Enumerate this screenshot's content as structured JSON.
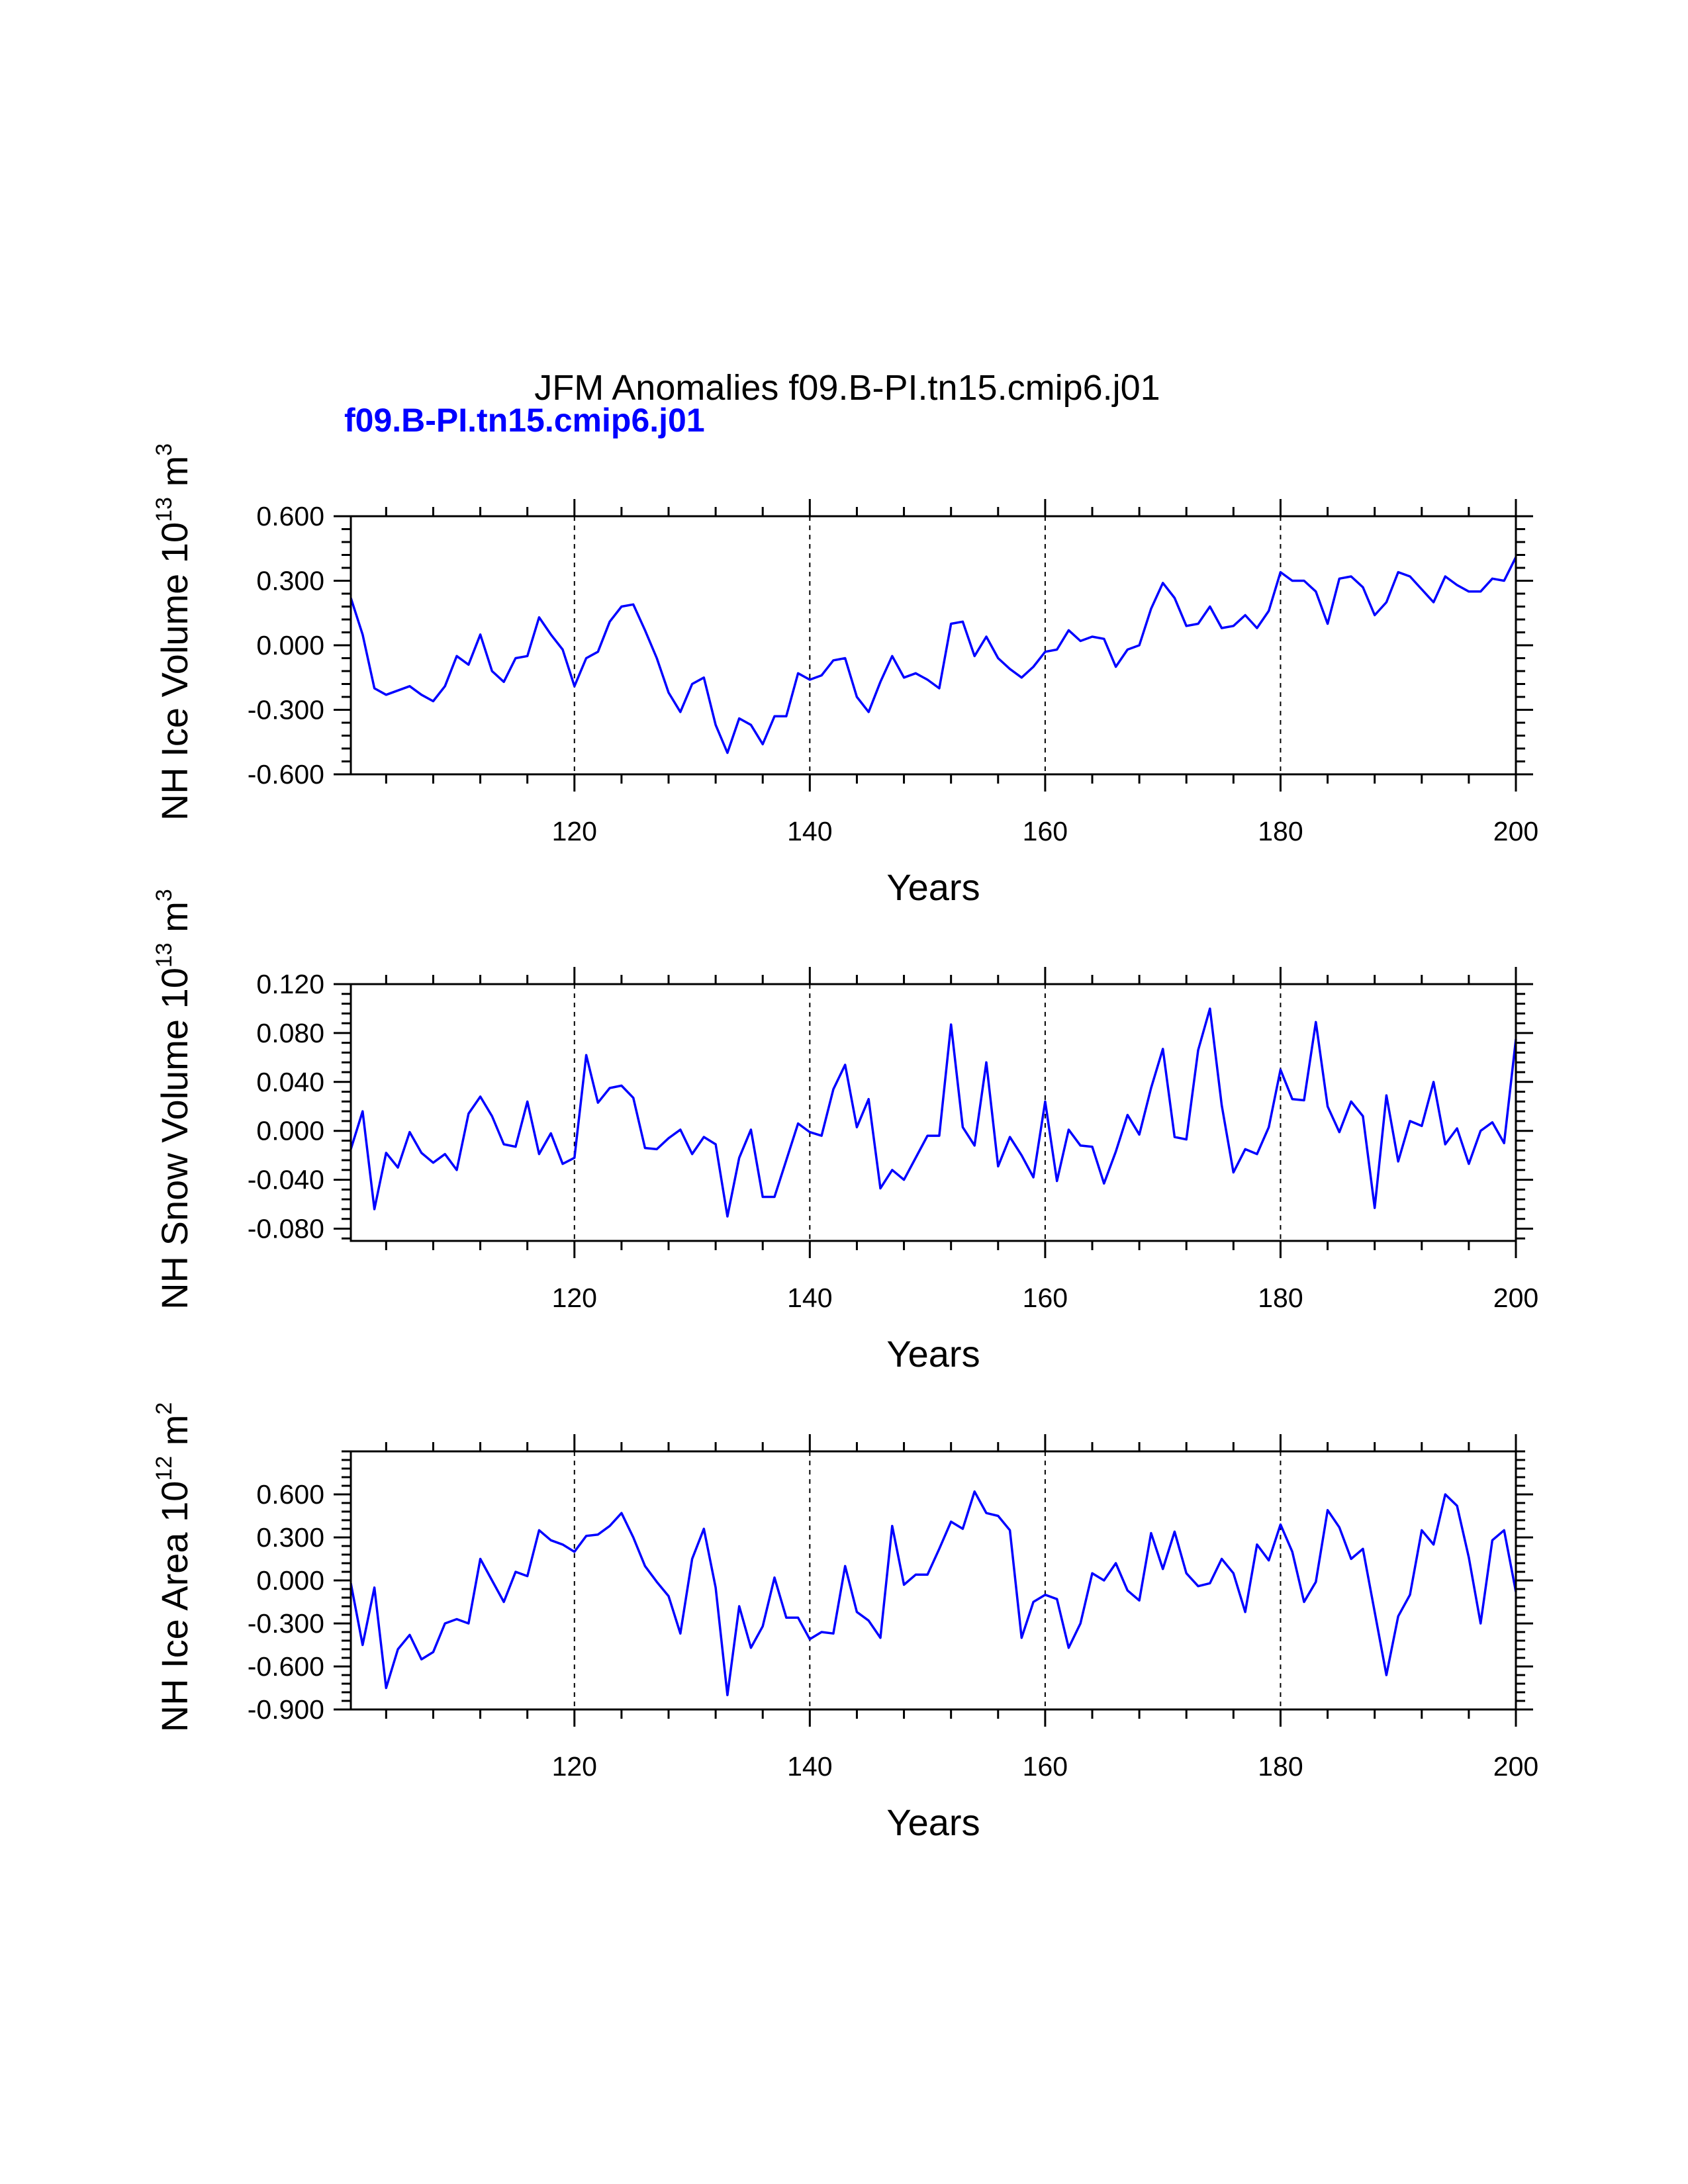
{
  "title": "JFM Anomalies f09.B-PI.tn15.cmip6.j01",
  "subtitle": "f09.B-PI.tn15.cmip6.j01",
  "colors": {
    "series": "#0000ff",
    "axis": "#000000",
    "subtitle": "#0000ff"
  },
  "chart_data": [
    {
      "type": "line",
      "title": "",
      "xlabel": "Years",
      "ylabel": {
        "main": "NH Ice Volume 10",
        "exponent": "13",
        "unit_base": " m",
        "unit_exp": "3"
      },
      "xlim": [
        101,
        200
      ],
      "ylim": [
        -0.6,
        0.6
      ],
      "xticks": [
        120,
        140,
        160,
        180,
        200
      ],
      "yticks": [
        -0.6,
        -0.3,
        0.0,
        0.3,
        0.6
      ],
      "ytick_labels": [
        "-0.600",
        "-0.300",
        "0.000",
        "0.300",
        "0.600"
      ],
      "grid": "dashed vertical lines at major x ticks",
      "series": [
        {
          "x_start": 101,
          "values": [
            0.22,
            0.05,
            -0.2,
            -0.23,
            -0.21,
            -0.19,
            -0.23,
            -0.26,
            -0.19,
            -0.05,
            -0.09,
            0.05,
            -0.12,
            -0.17,
            -0.06,
            -0.05,
            0.13,
            0.05,
            -0.02,
            -0.19,
            -0.06,
            -0.03,
            0.11,
            0.18,
            0.19,
            0.07,
            -0.06,
            -0.22,
            -0.31,
            -0.18,
            -0.15,
            -0.37,
            -0.5,
            -0.34,
            -0.37,
            -0.46,
            -0.33,
            -0.33,
            -0.13,
            -0.16,
            -0.14,
            -0.07,
            -0.06,
            -0.24,
            -0.31,
            -0.17,
            -0.05,
            -0.15,
            -0.13,
            -0.16,
            -0.2,
            0.1,
            0.11,
            -0.05,
            0.04,
            -0.06,
            -0.11,
            -0.15,
            -0.1,
            -0.03,
            -0.02,
            0.07,
            0.02,
            0.04,
            0.03,
            -0.1,
            -0.02,
            0.0,
            0.17,
            0.29,
            0.22,
            0.09,
            0.1,
            0.18,
            0.08,
            0.09,
            0.14,
            0.08,
            0.16,
            0.34,
            0.3,
            0.3,
            0.25,
            0.1,
            0.31,
            0.32,
            0.27,
            0.14,
            0.2,
            0.34,
            0.32,
            0.26,
            0.2,
            0.32,
            0.28,
            0.25,
            0.25,
            0.31,
            0.3,
            0.41
          ]
        }
      ]
    },
    {
      "type": "line",
      "title": "",
      "xlabel": "Years",
      "ylabel": {
        "main": "NH Snow Volume 10",
        "exponent": "13",
        "unit_base": " m",
        "unit_exp": "3"
      },
      "xlim": [
        101,
        200
      ],
      "ylim": [
        -0.09,
        0.12
      ],
      "xticks": [
        120,
        140,
        160,
        180,
        200
      ],
      "yticks": [
        -0.08,
        -0.04,
        0.0,
        0.04,
        0.08,
        0.12
      ],
      "ytick_labels": [
        "-0.080",
        "-0.040",
        "0.000",
        "0.040",
        "0.080",
        "0.120"
      ],
      "grid": "dashed vertical lines at major x ticks",
      "series": [
        {
          "x_start": 101,
          "values": [
            -0.015,
            0.016,
            -0.064,
            -0.018,
            -0.03,
            -0.001,
            -0.018,
            -0.026,
            -0.019,
            -0.032,
            0.014,
            0.028,
            0.012,
            -0.011,
            -0.013,
            0.024,
            -0.019,
            -0.002,
            -0.027,
            -0.022,
            0.062,
            0.023,
            0.035,
            0.037,
            0.027,
            -0.014,
            -0.015,
            -0.006,
            0.001,
            -0.019,
            -0.005,
            -0.011,
            -0.07,
            -0.022,
            0.001,
            -0.054,
            -0.054,
            -0.024,
            0.006,
            -0.001,
            -0.004,
            0.034,
            0.054,
            0.003,
            0.026,
            -0.047,
            -0.032,
            -0.04,
            -0.022,
            -0.004,
            -0.004,
            0.087,
            0.003,
            -0.012,
            0.056,
            -0.029,
            -0.005,
            -0.02,
            -0.038,
            0.024,
            -0.041,
            0.001,
            -0.012,
            -0.013,
            -0.043,
            -0.017,
            0.013,
            -0.003,
            0.035,
            0.067,
            -0.005,
            -0.007,
            0.066,
            0.1,
            0.021,
            -0.034,
            -0.015,
            -0.019,
            0.003,
            0.05,
            0.026,
            0.025,
            0.089,
            0.02,
            -0.001,
            0.024,
            0.012,
            -0.063,
            0.029,
            -0.025,
            0.008,
            0.004,
            0.04,
            -0.011,
            0.002,
            -0.027,
            0.0,
            0.007,
            -0.01,
            0.075
          ]
        }
      ]
    },
    {
      "type": "line",
      "title": "",
      "xlabel": "Years",
      "ylabel": {
        "main": "NH Ice Area 10",
        "exponent": "12",
        "unit_base": " m",
        "unit_exp": "2"
      },
      "xlim": [
        101,
        200
      ],
      "ylim": [
        -0.9,
        0.9
      ],
      "xticks": [
        120,
        140,
        160,
        180,
        200
      ],
      "yticks": [
        -0.9,
        -0.6,
        -0.3,
        0.0,
        0.3,
        0.6
      ],
      "ytick_labels": [
        "-0.900",
        "-0.600",
        "-0.300",
        "0.000",
        "0.300",
        "0.600"
      ],
      "grid": "dashed vertical lines at major x ticks",
      "series": [
        {
          "x_start": 101,
          "values": [
            -0.02,
            -0.45,
            -0.05,
            -0.75,
            -0.48,
            -0.38,
            -0.55,
            -0.5,
            -0.3,
            -0.27,
            -0.3,
            0.15,
            0.0,
            -0.15,
            0.06,
            0.03,
            0.35,
            0.28,
            0.25,
            0.2,
            0.31,
            0.32,
            0.38,
            0.47,
            0.3,
            0.1,
            -0.01,
            -0.11,
            -0.37,
            0.15,
            0.36,
            -0.05,
            -0.8,
            -0.18,
            -0.47,
            -0.32,
            0.02,
            -0.26,
            -0.26,
            -0.41,
            -0.36,
            -0.37,
            0.1,
            -0.22,
            -0.28,
            -0.4,
            0.38,
            -0.03,
            0.04,
            0.04,
            0.22,
            0.41,
            0.36,
            0.62,
            0.47,
            0.45,
            0.35,
            -0.4,
            -0.15,
            -0.1,
            -0.13,
            -0.47,
            -0.3,
            0.05,
            0.0,
            0.12,
            -0.07,
            -0.14,
            0.33,
            0.08,
            0.34,
            0.05,
            -0.04,
            -0.02,
            0.15,
            0.05,
            -0.22,
            0.25,
            0.14,
            0.39,
            0.2,
            -0.15,
            -0.01,
            0.49,
            0.37,
            0.15,
            0.22,
            -0.22,
            -0.66,
            -0.25,
            -0.1,
            0.35,
            0.25,
            0.6,
            0.52,
            0.16,
            -0.3,
            0.28,
            0.35,
            -0.08
          ]
        }
      ]
    }
  ]
}
